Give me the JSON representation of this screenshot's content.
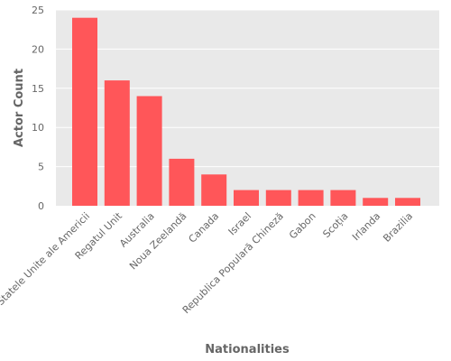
{
  "chart_data": {
    "type": "bar",
    "title": "",
    "xlabel": "Nationalities",
    "ylabel": "Actor Count",
    "categories": [
      "Statele Unite ale Americii",
      "Regatul Unit",
      "Australia",
      "Noua Zeelandă",
      "Canada",
      "Israel",
      "Republica Populară Chineză",
      "Gabon",
      "Scoția",
      "Irlanda",
      "Brazilia"
    ],
    "values": [
      24,
      16,
      14,
      6,
      4,
      2,
      2,
      2,
      2,
      1,
      1
    ],
    "ylim": [
      0,
      25
    ],
    "yticks": [
      0,
      5,
      10,
      15,
      20,
      25
    ],
    "grid": true,
    "legend": "none",
    "colors": {
      "bar": "#ff5659",
      "plot_background": "#e9e9e9",
      "grid": "#ffffff",
      "text": "#666666"
    }
  }
}
